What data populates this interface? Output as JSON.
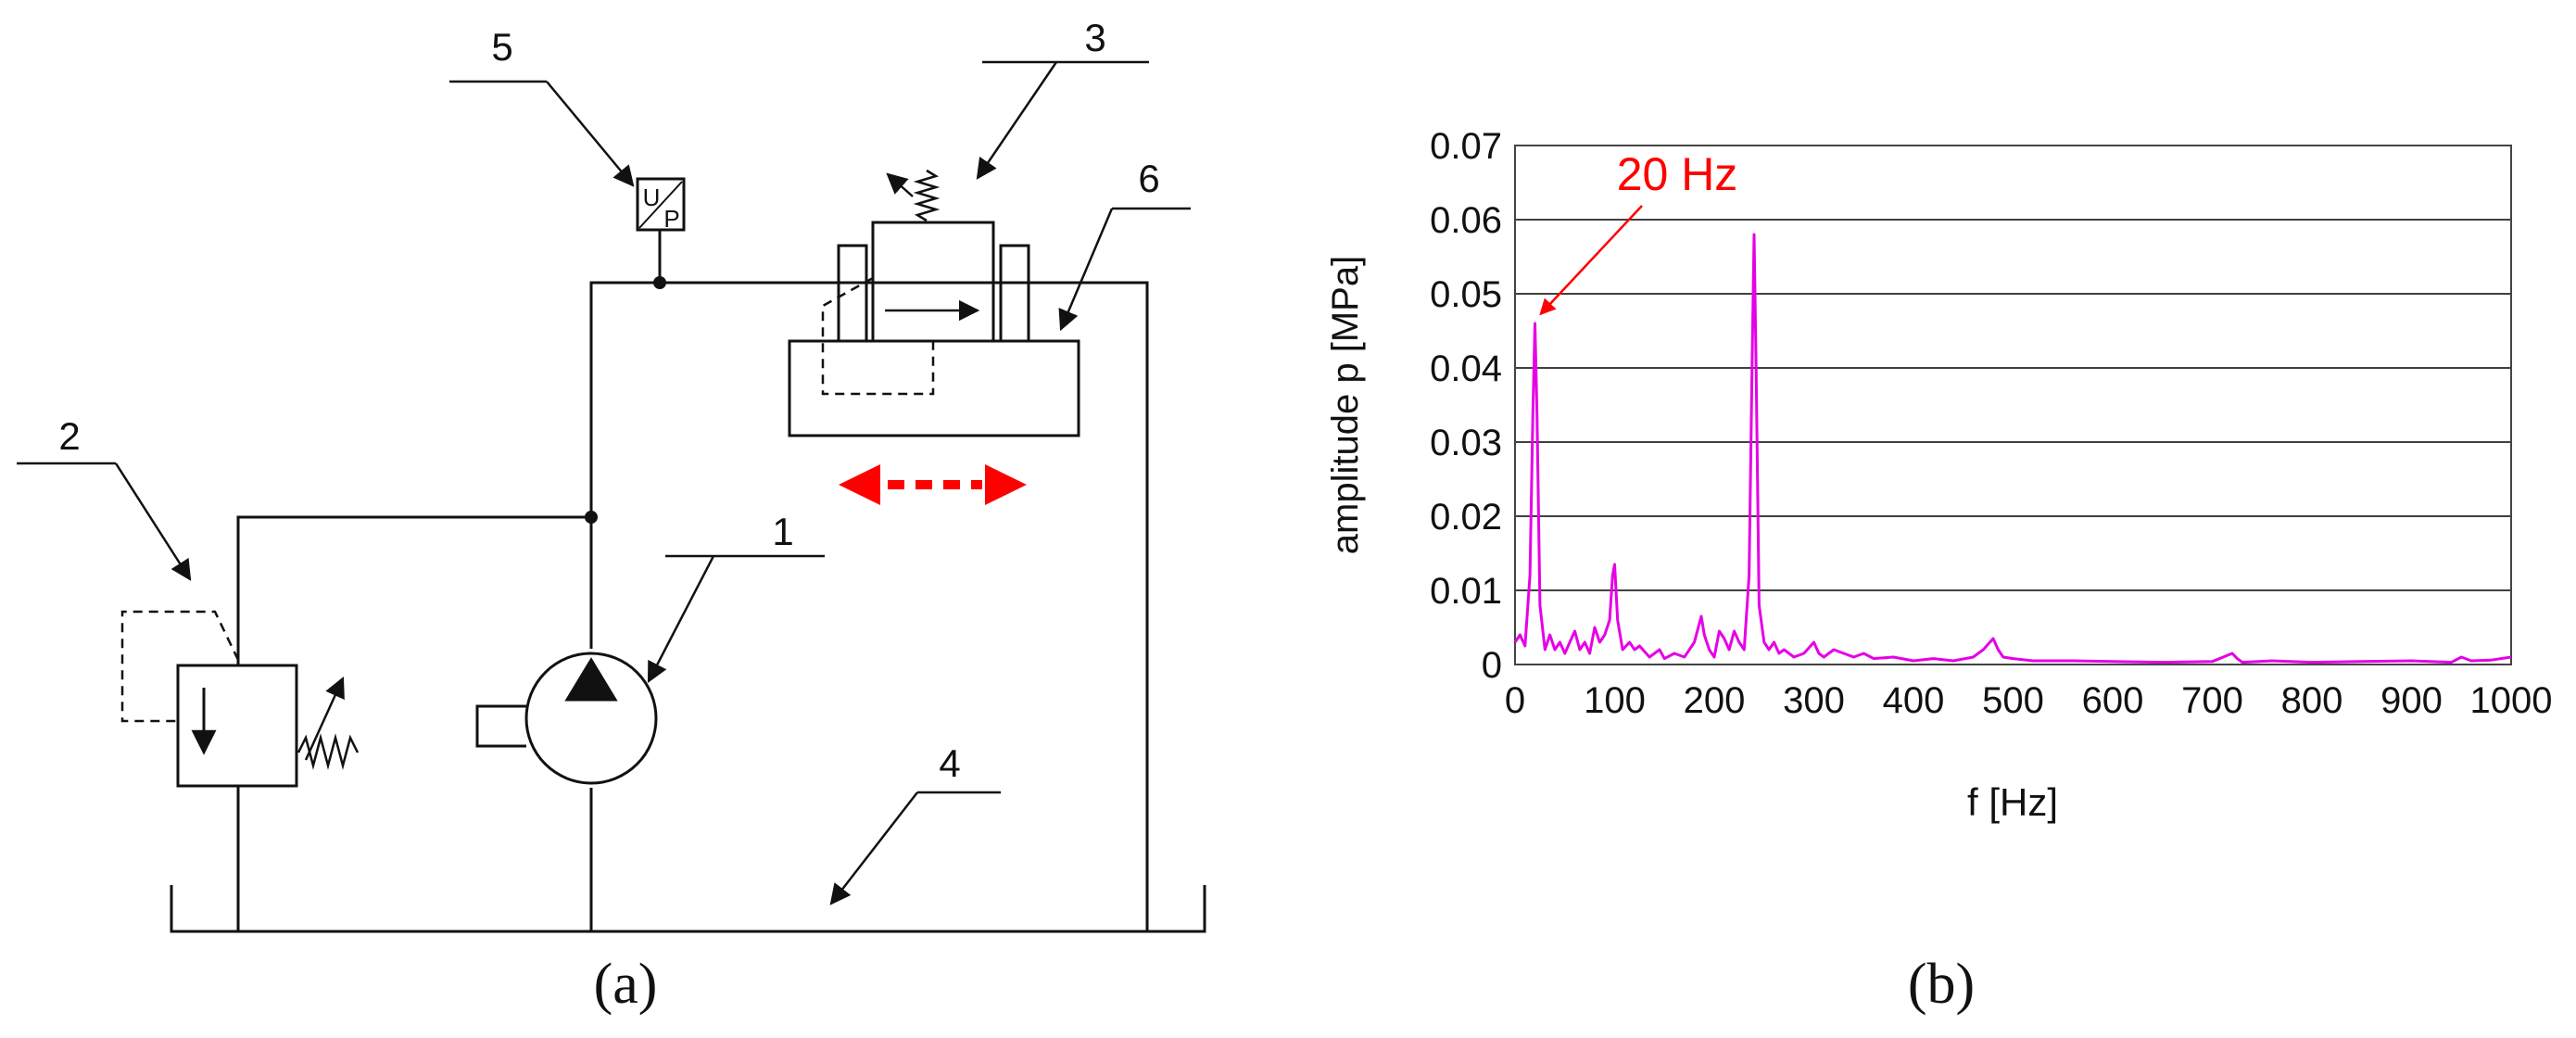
{
  "panel_a": {
    "caption": "(a)",
    "callouts": [
      "1",
      "2",
      "3",
      "4",
      "5",
      "6"
    ],
    "sensor": {
      "top_letter": "U",
      "bottom_letter": "P"
    }
  },
  "panel_b": {
    "caption": "(b)",
    "annotation": "20 Hz",
    "colors": {
      "series": "#e600e6",
      "annotation": "#ff0000",
      "grid": "#000000"
    }
  },
  "chart_data": {
    "type": "line",
    "title": "",
    "xlabel": "f [Hz]",
    "ylabel": "amplitude p [MPa]",
    "xlim": [
      0,
      1000
    ],
    "ylim": [
      0,
      0.07
    ],
    "x_ticks": [
      "0",
      "100",
      "200",
      "300",
      "400",
      "500",
      "600",
      "700",
      "800",
      "900",
      "1000"
    ],
    "y_ticks": [
      "0",
      "0.01",
      "0.02",
      "0.03",
      "0.04",
      "0.05",
      "0.06",
      "0.07"
    ],
    "grid": "horizontal",
    "series": [
      {
        "x": [
          0,
          5,
          10,
          15,
          18,
          20,
          22,
          25,
          30,
          35,
          40,
          45,
          50,
          55,
          60,
          65,
          70,
          75,
          80,
          85,
          90,
          95,
          98,
          100,
          103,
          108,
          115,
          120,
          125,
          135,
          145,
          150,
          160,
          170,
          180,
          187,
          190,
          195,
          200,
          205,
          210,
          215,
          220,
          225,
          230,
          235,
          238,
          240,
          242,
          245,
          250,
          255,
          260,
          265,
          270,
          280,
          290,
          300,
          305,
          310,
          320,
          330,
          340,
          350,
          360,
          380,
          400,
          420,
          440,
          460,
          470,
          480,
          485,
          490,
          500,
          520,
          560,
          600,
          650,
          700,
          720,
          725,
          730,
          760,
          800,
          850,
          900,
          940,
          950,
          960,
          980,
          1000
        ],
        "values": [
          0.003,
          0.004,
          0.0025,
          0.012,
          0.034,
          0.046,
          0.034,
          0.008,
          0.002,
          0.004,
          0.002,
          0.003,
          0.0015,
          0.003,
          0.0045,
          0.002,
          0.003,
          0.0015,
          0.005,
          0.003,
          0.004,
          0.006,
          0.012,
          0.0135,
          0.006,
          0.002,
          0.003,
          0.002,
          0.0025,
          0.001,
          0.002,
          0.0008,
          0.0015,
          0.001,
          0.003,
          0.0065,
          0.004,
          0.002,
          0.001,
          0.0045,
          0.0035,
          0.002,
          0.0045,
          0.003,
          0.002,
          0.012,
          0.04,
          0.058,
          0.04,
          0.008,
          0.003,
          0.002,
          0.003,
          0.0015,
          0.002,
          0.001,
          0.0015,
          0.003,
          0.0015,
          0.001,
          0.002,
          0.0015,
          0.001,
          0.0015,
          0.0008,
          0.001,
          0.0005,
          0.0008,
          0.0005,
          0.001,
          0.002,
          0.0035,
          0.002,
          0.001,
          0.0008,
          0.0005,
          0.0005,
          0.0004,
          0.0003,
          0.0004,
          0.0015,
          0.0008,
          0.0003,
          0.0005,
          0.0003,
          0.0004,
          0.0005,
          0.0003,
          0.001,
          0.0005,
          0.0006,
          0.001
        ]
      }
    ],
    "annotations": [
      {
        "text": "20 Hz",
        "x": 20,
        "y": 0.046
      }
    ]
  }
}
